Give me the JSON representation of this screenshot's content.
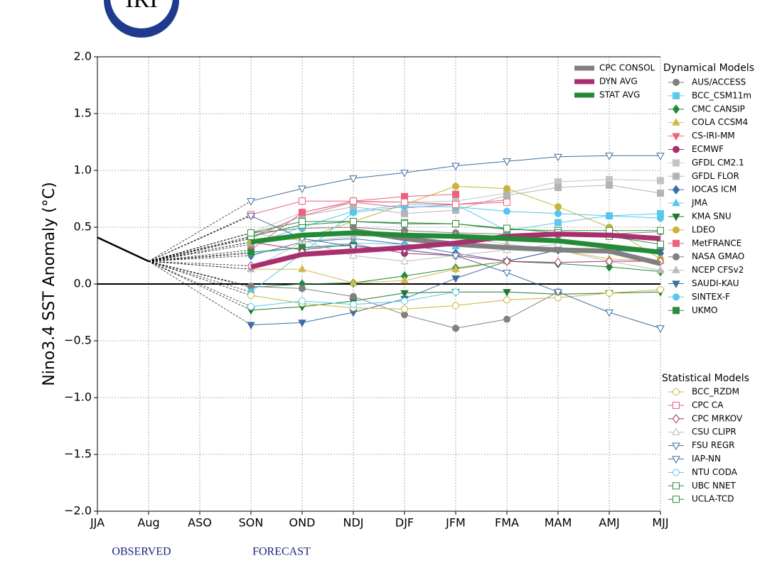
{
  "logo_text": "IRI",
  "chart_data": {
    "type": "line",
    "y_label": "Nino3.4 SST Anomaly (°C)",
    "categories": [
      "JJA",
      "Aug",
      "ASO",
      "SON",
      "OND",
      "NDJ",
      "DJF",
      "JFM",
      "FMA",
      "MAM",
      "AMJ",
      "MJJ"
    ],
    "ylim": [
      -2,
      2
    ],
    "yticks": [
      {
        "value": -2,
        "label": "−2.0"
      },
      {
        "value": -1.5,
        "label": "−1.5"
      },
      {
        "value": -1,
        "label": "−1.0"
      },
      {
        "value": -0.5,
        "label": "−0.5"
      },
      {
        "value": 0,
        "label": "0.0"
      },
      {
        "value": 0.5,
        "label": "0.5"
      },
      {
        "value": 1,
        "label": "1.0"
      },
      {
        "value": 1.5,
        "label": "1.5"
      },
      {
        "value": 2,
        "label": "2.0"
      }
    ],
    "grid": true,
    "annotations": {
      "observed": "OBSERVED",
      "forecast": "FORECAST"
    },
    "legend_titles": {
      "dynamical": "Dynamical Models",
      "statistical": "Statistical Models"
    },
    "observed": {
      "color": "#000000",
      "values": [
        0.41,
        0.2,
        null,
        null,
        null,
        null,
        null,
        null,
        null,
        null,
        null,
        null
      ]
    },
    "series": [
      {
        "name": "AUS/ACCESS",
        "group": "dynamical",
        "color": "#7f7f7f",
        "marker": "circle",
        "filled": true,
        "values": [
          null,
          null,
          null,
          0.45,
          0.49,
          0.5,
          0.47,
          0.45,
          0.44,
          0.43,
          0.44,
          0.46
        ]
      },
      {
        "name": "BCC_CSM11m",
        "group": "dynamical",
        "color": "#5bc8f0",
        "marker": "square",
        "filled": true,
        "values": [
          null,
          null,
          null,
          0.35,
          0.5,
          0.64,
          0.7,
          0.7,
          0.47,
          0.54,
          0.6,
          0.62
        ]
      },
      {
        "name": "CMC CANSIP",
        "group": "dynamical",
        "color": "#1f8a3a",
        "marker": "diamond",
        "filled": true,
        "values": [
          null,
          null,
          null,
          -0.03,
          0.0,
          0.01,
          0.07,
          0.14,
          0.2,
          0.18,
          0.15,
          0.11
        ]
      },
      {
        "name": "COLA CCSM4",
        "group": "dynamical",
        "color": "#d4b84a",
        "marker": "triangle-up",
        "filled": true,
        "values": [
          null,
          null,
          null,
          0.13,
          0.13,
          0.01,
          0.03,
          0.13,
          0.2,
          0.3,
          0.22,
          0.2
        ]
      },
      {
        "name": "CS-IRI-MM",
        "group": "dynamical",
        "color": "#f0607a",
        "marker": "triangle-down",
        "filled": true,
        "values": [
          null,
          null,
          null,
          0.41,
          0.6,
          0.72,
          0.67,
          0.7,
          0.74,
          null,
          null,
          null
        ]
      },
      {
        "name": "ECMWF",
        "group": "dynamical",
        "color": "#a8306f",
        "marker": "circle",
        "filled": true,
        "values": [
          null,
          null,
          null,
          0.37,
          0.3,
          0.35,
          0.27,
          0.25,
          null,
          null,
          null,
          null
        ]
      },
      {
        "name": "GFDL CM2.1",
        "group": "dynamical",
        "color": "#c4c4c4",
        "marker": "square",
        "filled": true,
        "values": [
          null,
          null,
          null,
          0.45,
          0.63,
          0.72,
          0.72,
          0.73,
          0.8,
          0.9,
          0.92,
          0.91
        ]
      },
      {
        "name": "GFDL FLOR",
        "group": "dynamical",
        "color": "#b4b4b4",
        "marker": "square",
        "filled": true,
        "values": [
          null,
          null,
          null,
          0.4,
          0.6,
          0.68,
          0.62,
          0.65,
          0.78,
          0.85,
          0.87,
          0.8
        ]
      },
      {
        "name": "IOCAS ICM",
        "group": "dynamical",
        "color": "#3c6ea5",
        "marker": "diamond",
        "filled": true,
        "values": [
          null,
          null,
          null,
          0.25,
          0.37,
          0.4,
          0.35,
          0.27,
          0.2,
          0.3,
          0.3,
          0.27
        ]
      },
      {
        "name": "JMA",
        "group": "dynamical",
        "color": "#56c8ec",
        "marker": "triangle-up",
        "filled": true,
        "values": [
          null,
          null,
          null,
          0.27,
          0.32,
          0.36,
          0.35,
          0.33,
          null,
          null,
          null,
          null
        ]
      },
      {
        "name": "KMA SNU",
        "group": "dynamical",
        "color": "#1e7a30",
        "marker": "triangle-down",
        "filled": true,
        "values": [
          null,
          null,
          null,
          -0.23,
          -0.2,
          -0.15,
          -0.08,
          -0.07,
          -0.07,
          -0.09,
          -0.08,
          -0.07
        ]
      },
      {
        "name": "LDEO",
        "group": "dynamical",
        "color": "#c8b43a",
        "marker": "circle",
        "filled": true,
        "values": [
          null,
          null,
          null,
          0.37,
          0.4,
          0.55,
          0.7,
          0.86,
          0.84,
          0.68,
          0.5,
          0.22
        ]
      },
      {
        "name": "MetFRANCE",
        "group": "dynamical",
        "color": "#ee6080",
        "marker": "square",
        "filled": true,
        "values": [
          null,
          null,
          null,
          0.3,
          0.63,
          0.73,
          0.77,
          0.79,
          null,
          null,
          null,
          null
        ]
      },
      {
        "name": "NASA GMAO",
        "group": "dynamical",
        "color": "#808080",
        "marker": "circle",
        "filled": true,
        "values": [
          null,
          null,
          null,
          -0.02,
          -0.04,
          -0.11,
          -0.27,
          -0.39,
          -0.31,
          -0.07,
          null,
          null
        ]
      },
      {
        "name": "NCEP CFSv2",
        "group": "dynamical",
        "color": "#bdbdbd",
        "marker": "triangle-up",
        "filled": true,
        "values": [
          null,
          null,
          null,
          0.13,
          0.37,
          0.42,
          0.43,
          0.42,
          0.35,
          0.3,
          0.2,
          0.12
        ]
      },
      {
        "name": "SAUDI-KAU",
        "group": "dynamical",
        "color": "#3d6e9e",
        "marker": "triangle-down",
        "filled": true,
        "values": [
          null,
          null,
          null,
          -0.36,
          -0.34,
          -0.25,
          -0.13,
          0.05,
          0.2,
          0.3,
          0.3,
          0.29
        ]
      },
      {
        "name": "SINTEX-F",
        "group": "dynamical",
        "color": "#55c6ee",
        "marker": "circle",
        "filled": true,
        "values": [
          null,
          null,
          null,
          -0.07,
          0.27,
          0.63,
          0.68,
          0.68,
          0.64,
          0.62,
          0.6,
          0.58
        ]
      },
      {
        "name": "UKMO",
        "group": "dynamical",
        "color": "#2e8b3e",
        "marker": "square",
        "filled": true,
        "values": [
          null,
          null,
          null,
          0.28,
          0.32,
          0.34,
          null,
          null,
          null,
          null,
          null,
          null
        ]
      },
      {
        "name": "BCC_RZDM",
        "group": "statistical",
        "color": "#c8b43a",
        "marker": "circle",
        "filled": false,
        "values": [
          null,
          null,
          null,
          -0.1,
          -0.17,
          -0.21,
          -0.22,
          -0.19,
          -0.14,
          -0.12,
          -0.08,
          -0.05
        ]
      },
      {
        "name": "CPC CA",
        "group": "statistical",
        "color": "#ee6080",
        "marker": "square",
        "filled": false,
        "values": [
          null,
          null,
          null,
          0.61,
          0.73,
          0.73,
          0.72,
          0.7,
          0.72,
          null,
          null,
          null
        ]
      },
      {
        "name": "CPC MRKOV",
        "group": "statistical",
        "color": "#a8306f",
        "marker": "diamond",
        "filled": false,
        "values": [
          null,
          null,
          null,
          0.16,
          0.28,
          0.31,
          0.3,
          0.25,
          0.2,
          0.19,
          0.2,
          0.2
        ]
      },
      {
        "name": "CSU CLIPR",
        "group": "statistical",
        "color": "#bdbdbd",
        "marker": "triangle-up",
        "filled": false,
        "values": [
          null,
          null,
          null,
          0.45,
          0.38,
          0.25,
          0.2,
          0.25,
          0.3,
          0.35,
          null,
          null
        ]
      },
      {
        "name": "FSU REGR",
        "group": "statistical",
        "color": "#3d6e9e",
        "marker": "triangle-down",
        "filled": false,
        "values": [
          null,
          null,
          null,
          0.6,
          0.4,
          0.33,
          0.3,
          0.25,
          0.1,
          -0.07,
          -0.25,
          -0.39
        ]
      },
      {
        "name": "IAP-NN",
        "group": "statistical",
        "color": "#3d6e9e",
        "marker": "triangle-down",
        "filled": false,
        "values": [
          null,
          null,
          null,
          0.73,
          0.84,
          0.93,
          0.98,
          1.04,
          1.08,
          1.12,
          1.13,
          1.13
        ]
      },
      {
        "name": "NTU CODA",
        "group": "statistical",
        "color": "#55c6ee",
        "marker": "circle",
        "filled": false,
        "values": [
          null,
          null,
          null,
          -0.2,
          -0.15,
          -0.18,
          -0.15,
          -0.07,
          null,
          null,
          null,
          null
        ]
      },
      {
        "name": "UBC NNET",
        "group": "statistical",
        "color": "#2e8b3e",
        "marker": "square",
        "filled": false,
        "values": [
          null,
          null,
          null,
          0.42,
          0.52,
          0.55,
          0.54,
          0.53,
          0.48,
          0.47,
          0.47,
          0.47
        ]
      },
      {
        "name": "UCLA-TCD",
        "group": "statistical",
        "color": "#2e8b3e",
        "marker": "square",
        "filled": false,
        "values": [
          null,
          null,
          null,
          0.45,
          0.55,
          0.55,
          0.53,
          0.53,
          0.49,
          0.45,
          0.42,
          0.35
        ]
      },
      {
        "name": "CPC CONSOL",
        "group": "average",
        "color": "#808080",
        "values": [
          null,
          null,
          null,
          null,
          null,
          0.47,
          0.4,
          0.35,
          0.32,
          0.3,
          0.29,
          0.18
        ]
      },
      {
        "name": "DYN AVG",
        "group": "average",
        "color": "#a8306f",
        "values": [
          null,
          null,
          null,
          0.15,
          0.26,
          0.29,
          0.32,
          0.36,
          0.42,
          0.44,
          0.43,
          0.4
        ]
      },
      {
        "name": "STAT AVG",
        "group": "average",
        "color": "#238b35",
        "values": [
          null,
          null,
          null,
          0.37,
          0.43,
          0.45,
          0.43,
          0.42,
          0.4,
          0.38,
          0.33,
          0.28
        ]
      }
    ]
  }
}
